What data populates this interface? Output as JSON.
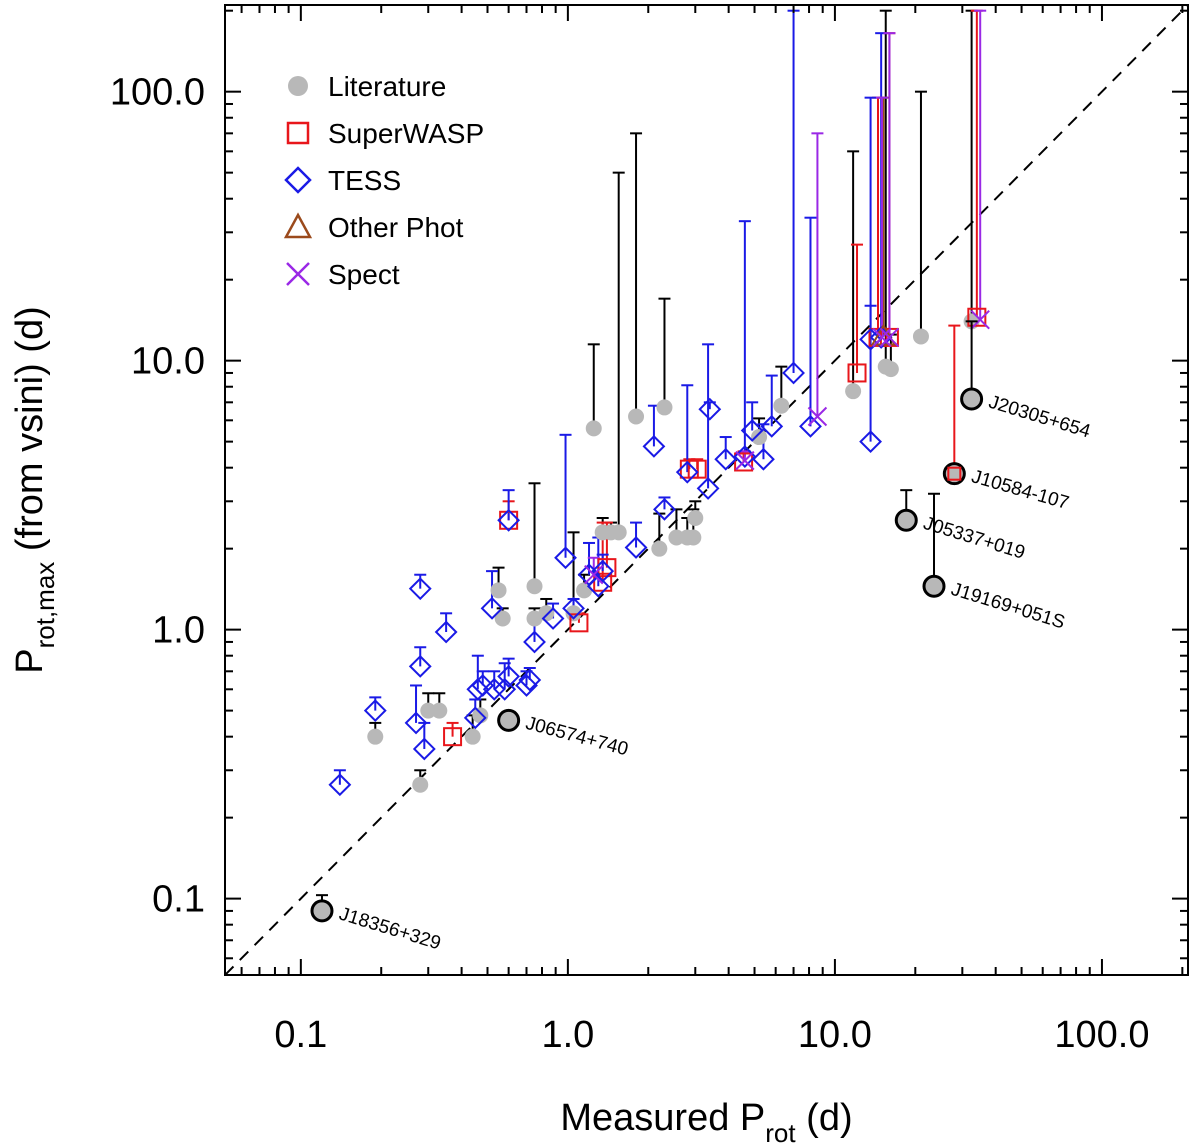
{
  "chart_data": {
    "type": "scatter",
    "x_scale": "log",
    "y_scale": "log",
    "xlim": [
      0.052,
      210
    ],
    "ylim": [
      0.052,
      210
    ],
    "xticks": [
      {
        "value": 0.1,
        "label": "0.1"
      },
      {
        "value": 1,
        "label": "1.0"
      },
      {
        "value": 10,
        "label": "10.0"
      },
      {
        "value": 100,
        "label": "100.0"
      }
    ],
    "yticks": [
      {
        "value": 0.1,
        "label": "0.1"
      },
      {
        "value": 1,
        "label": "1.0"
      },
      {
        "value": 10,
        "label": "10.0"
      },
      {
        "value": 100,
        "label": "100.0"
      }
    ],
    "xlabel": {
      "main": "Measured P",
      "sub": "rot",
      "unit": " (d)"
    },
    "ylabel": {
      "main": "P",
      "sub": "rot,max",
      "unit": " (from vsini) (d)"
    },
    "reference_line": "one-to-one dashed",
    "legend_position": "top-left",
    "legend": [
      {
        "label": "Literature",
        "marker": "filled-circle",
        "color": "#b8b8b8"
      },
      {
        "label": "SuperWASP",
        "marker": "square",
        "color": "#e8161b"
      },
      {
        "label": "TESS",
        "marker": "diamond",
        "color": "#1a1ae6"
      },
      {
        "label": "Other Phot",
        "marker": "triangle",
        "color": "#9b4a1c"
      },
      {
        "label": "Spect",
        "marker": "cross",
        "color": "#9a28e6"
      }
    ],
    "series": [
      {
        "name": "Literature",
        "marker": "filled-circle",
        "color": "#b8b8b8",
        "bar_color": "#000000",
        "points": [
          [
            0.19,
            0.4,
            0.45
          ],
          [
            0.28,
            0.265,
            0.3
          ],
          [
            0.3,
            0.5,
            0.58
          ],
          [
            0.33,
            0.5,
            0.58
          ],
          [
            0.44,
            0.4,
            0.48
          ],
          [
            0.47,
            0.48,
            0.55
          ],
          [
            0.55,
            1.4,
            1.7
          ],
          [
            0.57,
            1.1,
            1.2
          ],
          [
            0.75,
            1.45,
            3.5
          ],
          [
            0.75,
            1.1,
            1.2
          ],
          [
            0.83,
            1.15,
            1.3
          ],
          [
            1.05,
            1.15,
            2.3
          ],
          [
            1.15,
            1.4,
            1.6
          ],
          [
            1.25,
            5.6,
            11.5
          ],
          [
            1.35,
            2.3,
            2.6
          ],
          [
            1.45,
            2.3,
            2.5
          ],
          [
            1.55,
            2.3,
            50
          ],
          [
            1.8,
            6.2,
            70
          ],
          [
            2.2,
            2.0,
            2.7
          ],
          [
            2.3,
            6.7,
            17
          ],
          [
            2.55,
            2.2,
            2.8
          ],
          [
            2.8,
            2.2,
            2.6
          ],
          [
            2.95,
            2.2,
            2.8
          ],
          [
            3.0,
            2.6,
            3.0
          ],
          [
            5.2,
            5.2,
            6.1
          ],
          [
            6.3,
            6.8,
            9.5
          ],
          [
            11.7,
            7.7,
            60
          ],
          [
            15.5,
            9.5,
            200
          ],
          [
            16.2,
            9.3,
            12.5
          ],
          [
            21,
            12.3,
            100
          ],
          [
            32.5,
            14,
            200
          ]
        ]
      },
      {
        "name": "SuperWASP",
        "marker": "square",
        "color": "#e8161b",
        "points": [
          [
            0.37,
            0.4,
            0.45
          ],
          [
            0.6,
            2.55,
            3.0
          ],
          [
            1.1,
            1.06,
            1.15
          ],
          [
            1.35,
            1.5,
            2.5
          ],
          [
            1.4,
            1.7,
            2.5
          ],
          [
            2.85,
            3.95,
            4.3
          ],
          [
            3.05,
            3.95,
            4.3
          ],
          [
            4.55,
            4.2,
            4.6
          ],
          [
            12.1,
            9.0,
            27
          ],
          [
            14.5,
            12.2,
            95
          ],
          [
            16.0,
            12.2,
            165
          ],
          [
            34,
            14.5,
            200
          ]
        ]
      },
      {
        "name": "TESS",
        "marker": "diamond",
        "color": "#1a1ae6",
        "points": [
          [
            0.14,
            0.265,
            0.3
          ],
          [
            0.19,
            0.5,
            0.56
          ],
          [
            0.27,
            0.45,
            0.62
          ],
          [
            0.28,
            1.42,
            1.6
          ],
          [
            0.28,
            0.73,
            0.86
          ],
          [
            0.29,
            0.36,
            0.45
          ],
          [
            0.35,
            0.98,
            1.15
          ],
          [
            0.45,
            0.47,
            0.55
          ],
          [
            0.46,
            0.6,
            0.8
          ],
          [
            0.48,
            0.62,
            0.7
          ],
          [
            0.52,
            1.2,
            1.65
          ],
          [
            0.53,
            0.6,
            0.7
          ],
          [
            0.58,
            0.6,
            0.75
          ],
          [
            0.6,
            0.67,
            0.78
          ],
          [
            0.6,
            2.55,
            3.3
          ],
          [
            0.7,
            0.62,
            0.7
          ],
          [
            0.72,
            0.65,
            0.72
          ],
          [
            0.75,
            0.9,
            1.1
          ],
          [
            0.88,
            1.1,
            1.25
          ],
          [
            0.98,
            1.85,
            5.3
          ],
          [
            1.05,
            1.2,
            1.3
          ],
          [
            1.2,
            1.6,
            2.1
          ],
          [
            1.3,
            1.45,
            2.2
          ],
          [
            1.35,
            1.65,
            1.9
          ],
          [
            1.8,
            2.02,
            2.5
          ],
          [
            2.1,
            4.8,
            6.8
          ],
          [
            2.3,
            2.8,
            3.1
          ],
          [
            2.8,
            3.85,
            8.1
          ],
          [
            3.35,
            3.35,
            11.5
          ],
          [
            3.4,
            6.6,
            7.0
          ],
          [
            3.9,
            4.3,
            5.2
          ],
          [
            4.6,
            4.4,
            33
          ],
          [
            4.9,
            5.5,
            7.0
          ],
          [
            5.4,
            4.3,
            5.8
          ],
          [
            5.8,
            5.7,
            8.8
          ],
          [
            7.0,
            9.0,
            200
          ],
          [
            8.1,
            5.7,
            34
          ],
          [
            13.6,
            12.0,
            16
          ],
          [
            13.6,
            5.0,
            95
          ],
          [
            14.9,
            12.2,
            165
          ]
        ]
      },
      {
        "name": "Other Phot",
        "marker": "triangle",
        "color": "#9b4a1c",
        "points": [
          [
            15.2,
            12.3,
            95
          ]
        ]
      },
      {
        "name": "Spect",
        "marker": "cross",
        "color": "#9a28e6",
        "points": [
          [
            1.25,
            1.6,
            1.85
          ],
          [
            4.6,
            4.25,
            4.6
          ],
          [
            8.6,
            6.2,
            70
          ],
          [
            15.0,
            12.2,
            95
          ],
          [
            16.0,
            12.2,
            165
          ],
          [
            35,
            14.2,
            200
          ]
        ]
      }
    ],
    "highlighted": [
      {
        "label": "J20305+654",
        "x": 32.5,
        "y": 7.2,
        "bar_top": 14,
        "angle": 17
      },
      {
        "label": "J10584-107",
        "x": 28,
        "y": 3.8,
        "bar_top": 13.5,
        "bar_color": "#e8161b",
        "marker": "square",
        "angle": 16
      },
      {
        "label": "J05337+019",
        "x": 18.5,
        "y": 2.55,
        "bar_top": 3.3,
        "angle": 17
      },
      {
        "label": "J19169+051S",
        "x": 23.5,
        "y": 1.45,
        "bar_top": 3.2,
        "angle": 17
      },
      {
        "label": "J06574+740",
        "x": 0.6,
        "y": 0.46,
        "angle": 15
      },
      {
        "label": "J18356+329",
        "x": 0.12,
        "y": 0.09,
        "bar_top": 0.103,
        "angle": 17
      }
    ]
  }
}
